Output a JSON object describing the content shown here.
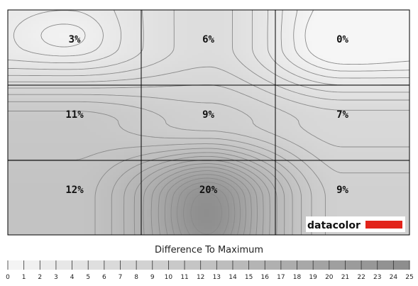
{
  "chart_data": {
    "type": "heatmap",
    "rows": 3,
    "cols": 3,
    "values": [
      [
        3,
        6,
        0
      ],
      [
        11,
        9,
        7
      ],
      [
        12,
        20,
        9
      ]
    ],
    "value_suffix": "%",
    "legend_title": "Difference To Maximum",
    "legend_ticks": [
      0,
      1,
      2,
      3,
      4,
      5,
      6,
      7,
      8,
      9,
      10,
      11,
      12,
      13,
      14,
      15,
      16,
      17,
      18,
      19,
      20,
      21,
      22,
      23,
      24,
      25
    ],
    "legend_range": [
      0,
      25
    ],
    "grid": true
  },
  "brand": {
    "logo_text": "datacolor",
    "accent_color": "#e2231a"
  },
  "colors": {
    "contour_line": "#8a8a8a",
    "grid_line": "#000000",
    "scale_low": "#f6f6f6",
    "scale_high": "#8c8c8c"
  }
}
